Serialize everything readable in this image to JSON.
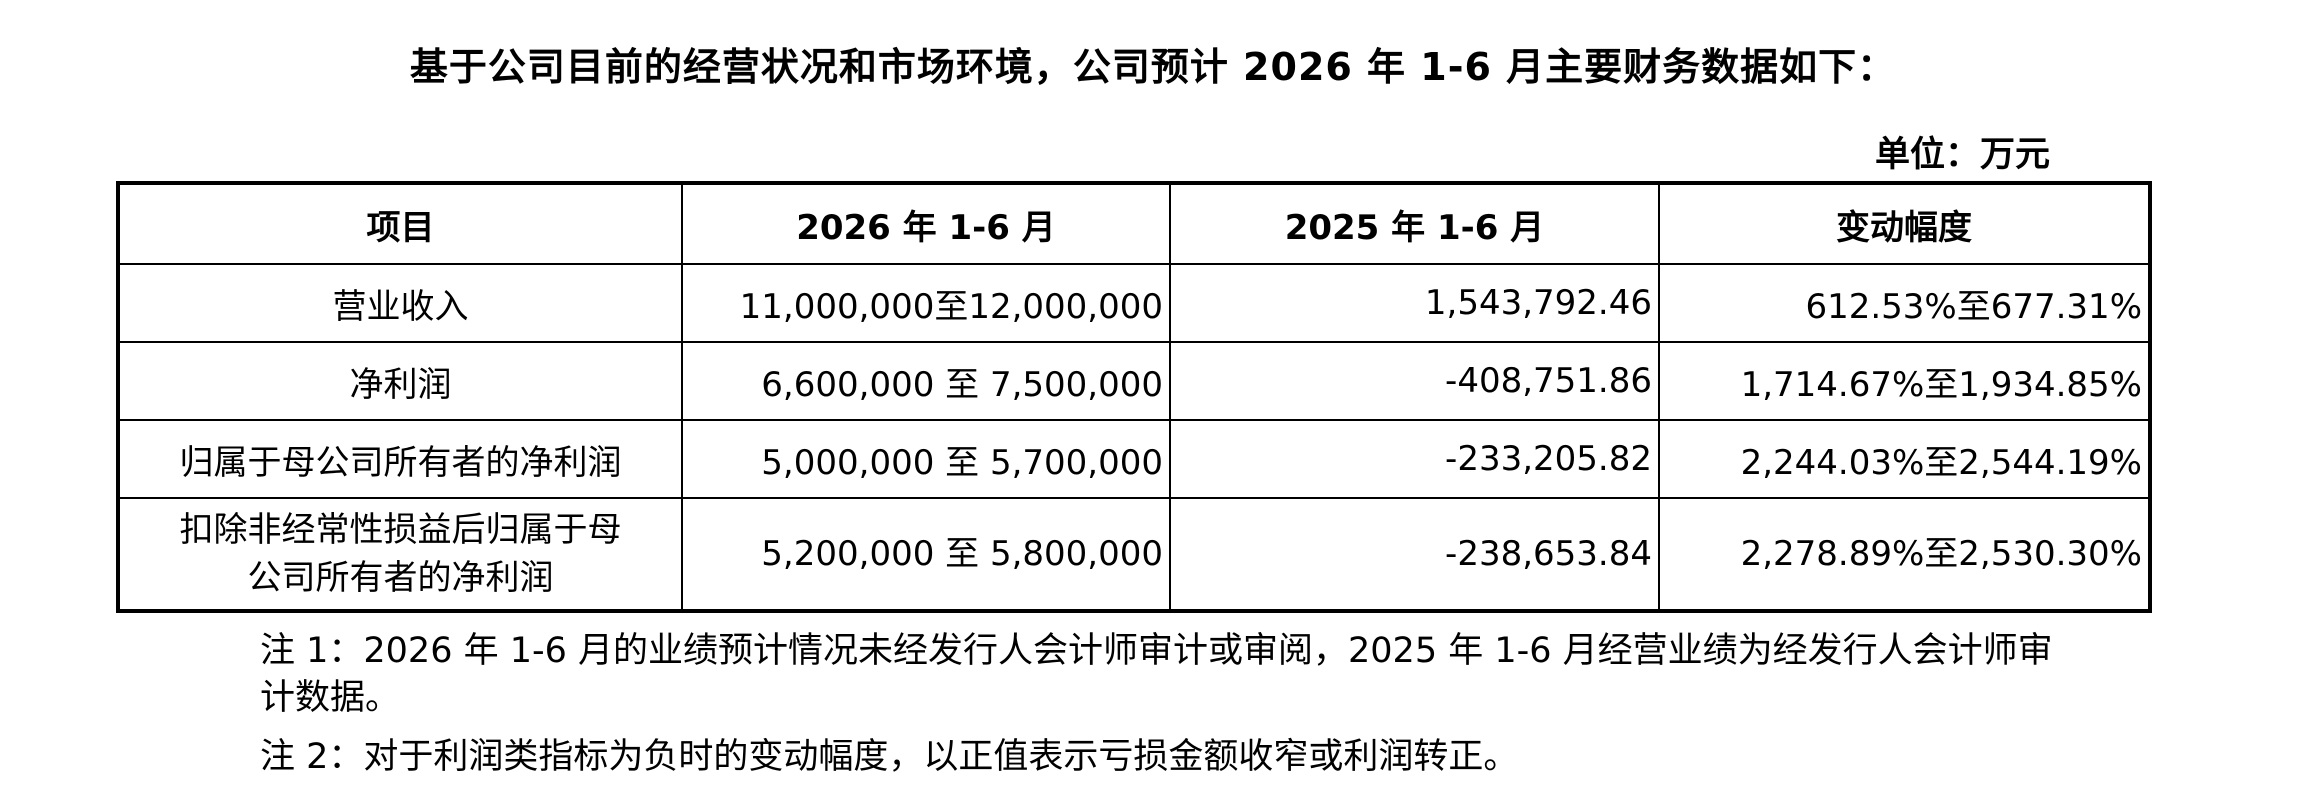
{
  "title": "基于公司目前的经营状况和市场环境，公司预计 2026 年 1-6 月主要财务数据如下：",
  "unit": "单位：万元",
  "table": {
    "header": [
      "项目",
      "2026 年 1-6 月",
      "2025 年 1-6 月",
      "变动幅度"
    ],
    "rows": [
      [
        "营业收入",
        "11,000,000至12,000,000",
        "1,543,792.46",
        "612.53%至677.31%"
      ],
      [
        "净利润",
        "6,600,000 至 7,500,000",
        "-408,751.86",
        "1,714.67%至1,934.85%"
      ],
      [
        "归属于母公司所有者的净利润",
        "5,000,000 至 5,700,000",
        "-233,205.82",
        "2,244.03%至2,544.19%"
      ],
      [
        "扣除非经常性损益后归属于母公司所有者的净利润",
        "5,200,000 至 5,800,000",
        "-238,653.84",
        "2,278.89%至2,530.30%"
      ]
    ]
  },
  "notes": [
    "注 1：2026 年 1-6 月的业绩预计情况未经发行人会计师审计或审阅，2025 年 1-6 月经营业绩为经发行人会计师审计数据。",
    "注 2：对于利润类指标为负时的变动幅度，以正值表示亏损金额收窄或利润转正。"
  ]
}
